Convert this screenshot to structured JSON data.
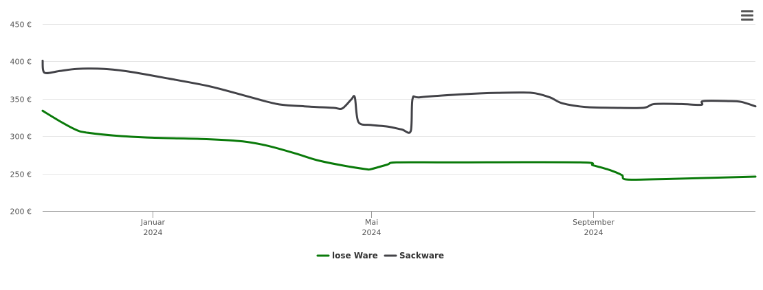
{
  "chart_data": {
    "type": "line",
    "title": "",
    "xlabel": "",
    "ylabel": "",
    "ylim": [
      200,
      450
    ],
    "y_ticks": [
      200,
      250,
      300,
      350,
      400,
      450
    ],
    "y_tick_format": "{v} €",
    "xlim": [
      "2023-11-01",
      "2024-11-30"
    ],
    "x_ticks": [
      {
        "date": "2024-01-01",
        "month": "Januar",
        "year": "2024"
      },
      {
        "date": "2024-05-01",
        "month": "Mai",
        "year": "2024"
      },
      {
        "date": "2024-09-01",
        "month": "September",
        "year": "2024"
      }
    ],
    "grid": true,
    "legend_position": "bottom-center",
    "series": [
      {
        "name": "lose Ware",
        "color": "#0a7a0a",
        "points": [
          [
            "2023-11-01",
            334
          ],
          [
            "2023-11-12",
            318
          ],
          [
            "2023-11-20",
            308
          ],
          [
            "2023-11-25",
            305
          ],
          [
            "2023-12-10",
            301
          ],
          [
            "2024-01-01",
            298
          ],
          [
            "2024-02-01",
            296
          ],
          [
            "2024-02-20",
            293
          ],
          [
            "2024-03-05",
            287
          ],
          [
            "2024-03-20",
            277
          ],
          [
            "2024-04-01",
            268
          ],
          [
            "2024-04-15",
            261
          ],
          [
            "2024-04-28",
            256
          ],
          [
            "2024-05-01",
            256
          ],
          [
            "2024-05-10",
            262
          ],
          [
            "2024-05-15",
            265
          ],
          [
            "2024-06-15",
            265
          ],
          [
            "2024-08-25",
            265
          ],
          [
            "2024-09-01",
            261
          ],
          [
            "2024-09-10",
            255
          ],
          [
            "2024-09-17",
            248
          ],
          [
            "2024-09-20",
            242
          ],
          [
            "2024-10-15",
            243
          ],
          [
            "2024-11-30",
            246
          ]
        ]
      },
      {
        "name": "Sackware",
        "color": "#434348",
        "points": [
          [
            "2023-11-01",
            401
          ],
          [
            "2023-11-02",
            385
          ],
          [
            "2023-11-10",
            387
          ],
          [
            "2023-11-20",
            390
          ],
          [
            "2023-12-05",
            390
          ],
          [
            "2023-12-20",
            386
          ],
          [
            "2024-01-10",
            377
          ],
          [
            "2024-02-01",
            367
          ],
          [
            "2024-02-20",
            355
          ],
          [
            "2024-03-10",
            343
          ],
          [
            "2024-03-25",
            340
          ],
          [
            "2024-04-10",
            338
          ],
          [
            "2024-04-15",
            337
          ],
          [
            "2024-04-20",
            349
          ],
          [
            "2024-04-22",
            352
          ],
          [
            "2024-04-24",
            319
          ],
          [
            "2024-05-01",
            315
          ],
          [
            "2024-05-10",
            313
          ],
          [
            "2024-05-18",
            309
          ],
          [
            "2024-05-23",
            307
          ],
          [
            "2024-05-24",
            350
          ],
          [
            "2024-05-28",
            352
          ],
          [
            "2024-06-20",
            356
          ],
          [
            "2024-07-10",
            358
          ],
          [
            "2024-07-29",
            358
          ],
          [
            "2024-08-08",
            352
          ],
          [
            "2024-08-15",
            344
          ],
          [
            "2024-08-28",
            339
          ],
          [
            "2024-09-12",
            338
          ],
          [
            "2024-09-29",
            338
          ],
          [
            "2024-10-05",
            343
          ],
          [
            "2024-10-20",
            343
          ],
          [
            "2024-10-31",
            342
          ],
          [
            "2024-11-01",
            347
          ],
          [
            "2024-11-15",
            347
          ],
          [
            "2024-11-22",
            346
          ],
          [
            "2024-11-30",
            340
          ]
        ]
      }
    ]
  }
}
